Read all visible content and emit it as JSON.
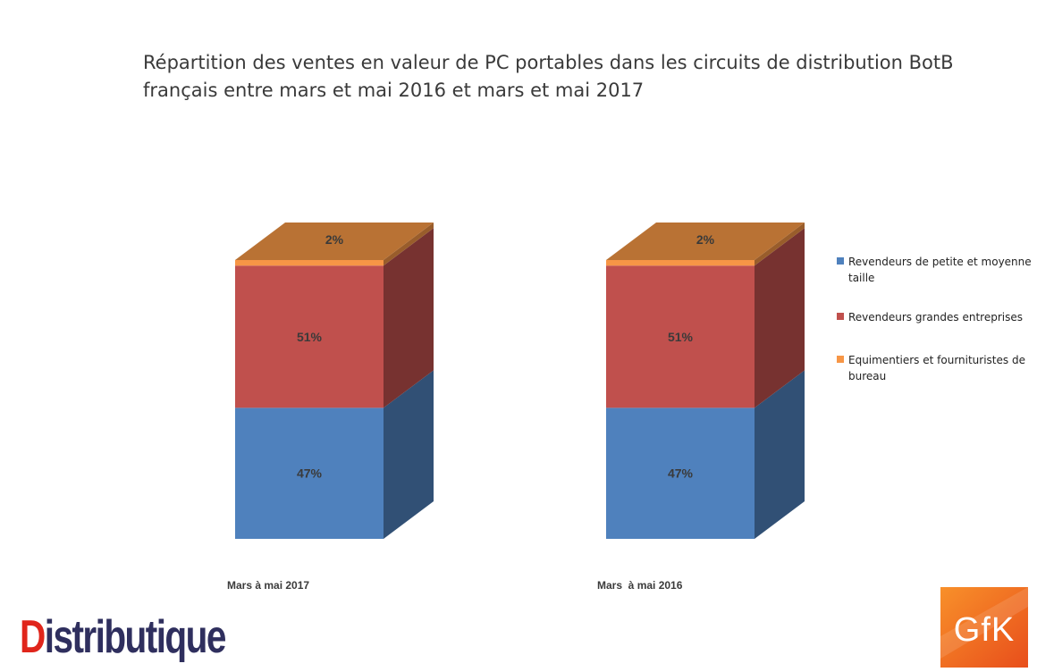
{
  "title": "Répartition des ventes en valeur de PC portables dans les circuits de distribution BotB français entre mars et mai 2016 et mars et mai 2017",
  "logos": {
    "distributique": "Distributique",
    "gfk": "GfK"
  },
  "chart_data": {
    "type": "bar",
    "stacked": true,
    "three_d": true,
    "categories": [
      "Mars à mai 2017",
      "Mars  à mai 2016"
    ],
    "series": [
      {
        "name": "Revendeurs de petite et moyenne taille",
        "values": [
          47,
          47
        ],
        "labels": [
          "47%",
          "47%"
        ],
        "color": "#4f81bd"
      },
      {
        "name": "Revendeurs grandes entreprises",
        "values": [
          51,
          51
        ],
        "labels": [
          "51%",
          "51%"
        ],
        "color": "#c0504d"
      },
      {
        "name": "Equimentiers et fournituristes de bureau",
        "values": [
          2,
          2
        ],
        "labels": [
          "2%",
          "2%"
        ],
        "color": "#f79646"
      }
    ],
    "ylim": [
      0,
      100
    ],
    "unit": "%",
    "legend_position": "right"
  }
}
